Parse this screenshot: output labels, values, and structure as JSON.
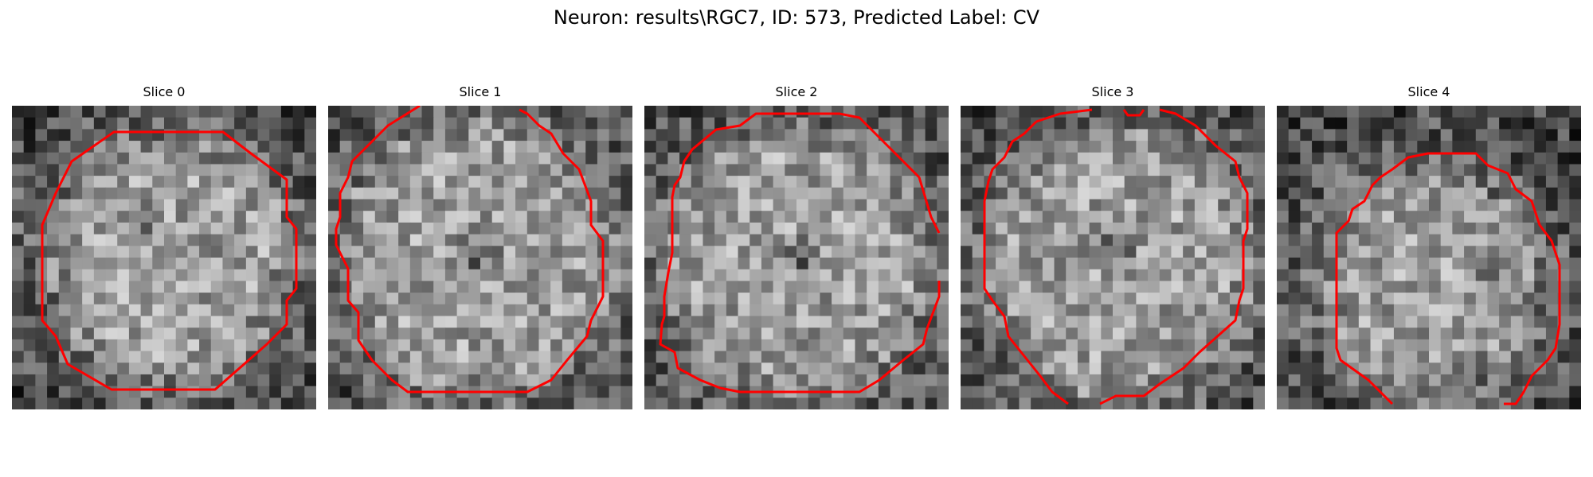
{
  "figure": {
    "title": "Neuron: results\\RGC7, ID: 573, Predicted Label: CV"
  },
  "panels": [
    {
      "title": "Slice 0"
    },
    {
      "title": "Slice 1"
    },
    {
      "title": "Slice 2"
    },
    {
      "title": "Slice 3"
    },
    {
      "title": "Slice 4"
    }
  ],
  "colors": {
    "contour": "#ff0000",
    "background": "#ffffff"
  }
}
